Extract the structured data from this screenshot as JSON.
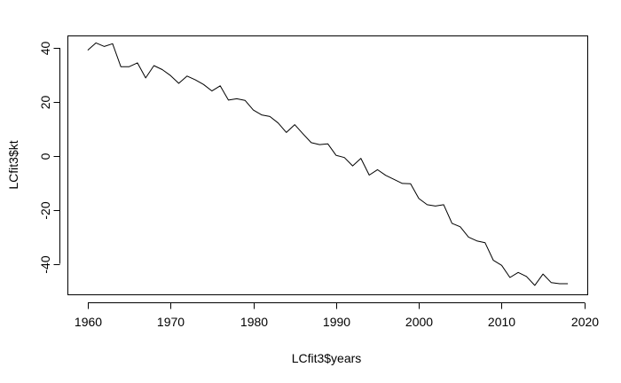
{
  "chart_data": {
    "type": "line",
    "title": "",
    "xlabel": "LCfit3$years",
    "ylabel": "LCfit3$kt",
    "xlim": [
      1957.6,
      2020.4
    ],
    "ylim": [
      -51.5,
      44.5
    ],
    "x_ticks": [
      1960,
      1970,
      1980,
      1990,
      2000,
      2010,
      2020
    ],
    "y_ticks": [
      -40,
      -20,
      0,
      20,
      40
    ],
    "grid": false,
    "legend": "none",
    "series": [
      {
        "color": "#000000",
        "x": [
          1960,
          1961,
          1962,
          1963,
          1964,
          1965,
          1966,
          1967,
          1968,
          1969,
          1970,
          1971,
          1972,
          1973,
          1974,
          1975,
          1976,
          1977,
          1978,
          1979,
          1980,
          1981,
          1982,
          1983,
          1984,
          1985,
          1986,
          1987,
          1988,
          1989,
          1990,
          1991,
          1992,
          1993,
          1994,
          1995,
          1996,
          1997,
          1998,
          1999,
          2000,
          2001,
          2002,
          2003,
          2004,
          2005,
          2006,
          2007,
          2008,
          2009,
          2010,
          2011,
          2012,
          2013,
          2014,
          2015,
          2016,
          2017,
          2018
        ],
        "values": [
          39.2,
          41.9,
          40.6,
          41.6,
          33.1,
          33.1,
          34.5,
          28.9,
          33.5,
          32.0,
          29.8,
          26.9,
          29.6,
          28.2,
          26.5,
          24.1,
          26.0,
          20.7,
          21.2,
          20.6,
          17.0,
          15.2,
          14.6,
          12.2,
          8.7,
          11.6,
          8.2,
          4.9,
          4.2,
          4.5,
          0.2,
          -0.6,
          -3.7,
          -0.9,
          -7.1,
          -5.1,
          -7.2,
          -8.7,
          -10.2,
          -10.3,
          -15.8,
          -18.1,
          -18.6,
          -18.1,
          -25.0,
          -26.3,
          -30.1,
          -31.5,
          -32.2,
          -38.7,
          -40.6,
          -45.1,
          -43.2,
          -44.7,
          -48.0,
          -43.8,
          -47.0,
          -47.4,
          -47.4
        ]
      }
    ]
  }
}
